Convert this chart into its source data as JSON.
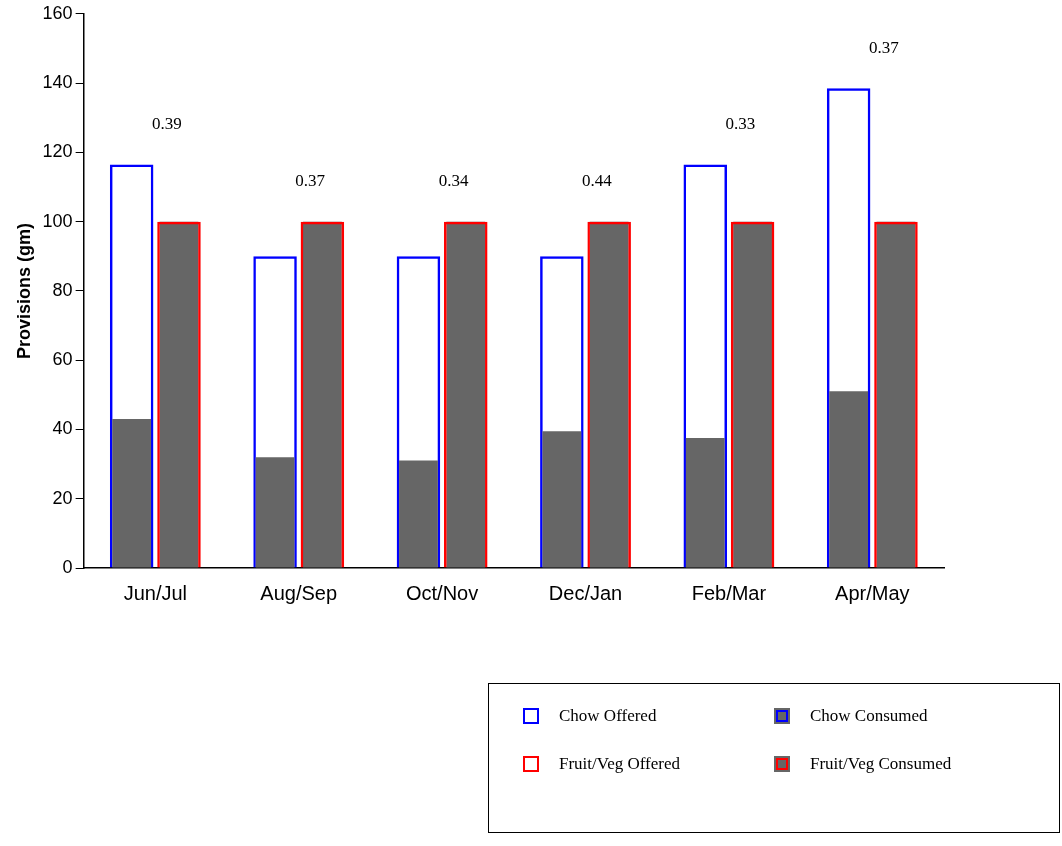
{
  "chart_data": {
    "type": "bar",
    "ylabel": "Provisions (gm)",
    "categories": [
      "Jun/Jul",
      "Aug/Sep",
      "Oct/Nov",
      "Dec/Jan",
      "Feb/Mar",
      "Apr/May"
    ],
    "series": [
      {
        "name": "Chow Offered",
        "color": "#0000ff",
        "values": [
          116.5,
          90,
          90,
          90,
          116.5,
          138.5
        ]
      },
      {
        "name": "Chow Consumed",
        "color": "#666666",
        "values": [
          43,
          32,
          31,
          39.5,
          37.5,
          51
        ]
      },
      {
        "name": "Fruit/Veg Offered",
        "color": "#ff0000",
        "values": [
          100,
          100,
          100,
          100,
          100,
          100
        ]
      },
      {
        "name": "Fruit/Veg Consumed",
        "color": "#666666",
        "values": [
          100,
          100,
          100,
          100,
          100,
          100
        ]
      }
    ],
    "ylim": [
      0,
      160
    ],
    "yticks": [
      0,
      20,
      40,
      60,
      80,
      100,
      120,
      140,
      160
    ],
    "legend": "bottom right",
    "annotations": [
      "0.39",
      "0.37",
      "0.34",
      "0.44",
      "0.33",
      "0.37"
    ]
  }
}
